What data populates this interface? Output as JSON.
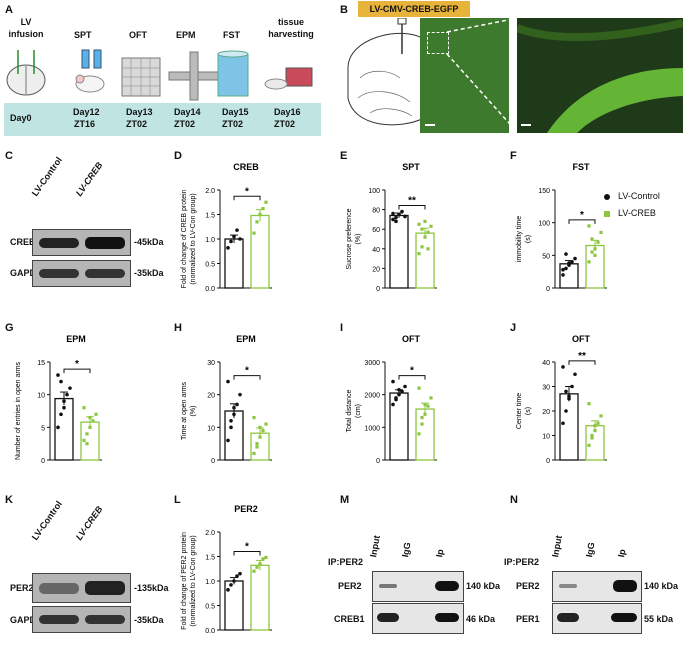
{
  "panels": {
    "A": {
      "label": "A",
      "steps": [
        "LV infusion",
        "SPT",
        "OFT",
        "EPM",
        "FST",
        "tissue harvesting"
      ],
      "days": [
        [
          "Day0",
          ""
        ],
        [
          "Day12",
          "ZT16"
        ],
        [
          "Day13",
          "ZT02"
        ],
        [
          "Day14",
          "ZT02"
        ],
        [
          "Day15",
          "ZT02"
        ],
        [
          "Day16",
          "ZT02"
        ]
      ]
    },
    "B": {
      "label": "B",
      "title": "LV-CMV-CREB-EGFP",
      "title_bg": "#e8b33a"
    },
    "C": {
      "label": "C",
      "lanes": [
        "LV-Control",
        "LV-CREB"
      ],
      "rows": [
        {
          "protein": "CREB",
          "size": "-45kDa"
        },
        {
          "protein": "GAPDH",
          "size": "-35kDa"
        }
      ]
    },
    "K": {
      "label": "K",
      "lanes": [
        "LV-Control",
        "LV-CREB"
      ],
      "rows": [
        {
          "protein": "PER2",
          "size": "-135kDa"
        },
        {
          "protein": "GAPDH",
          "size": "-35kDa"
        }
      ]
    },
    "M": {
      "label": "M",
      "ip": "IP:PER2",
      "lanes": [
        "Input",
        "IgG",
        "Ip"
      ],
      "rows": [
        {
          "protein": "PER2",
          "size": "140 kDa"
        },
        {
          "protein": "CREB1",
          "size": "46 kDa"
        }
      ]
    },
    "N": {
      "label": "N",
      "ip": "IP:PER2",
      "lanes": [
        "Input",
        "IgG",
        "Ip"
      ],
      "rows": [
        {
          "protein": "PER2",
          "size": "140 kDa"
        },
        {
          "protein": "PER1",
          "size": "55 kDa"
        }
      ]
    }
  },
  "legend": {
    "entries": [
      "LV-Control",
      "LV-CREB"
    ],
    "colors": [
      "#111111",
      "#8cc63f"
    ]
  },
  "chart_data": [
    {
      "id": "D",
      "type": "bar",
      "title": "CREB",
      "ylabel": "Fold of change of CREB protein (normalized to LV-Con group)",
      "categories": [
        "LV-Control",
        "LV-CREB"
      ],
      "values": [
        1.0,
        1.48
      ],
      "errors": [
        0.08,
        0.12
      ],
      "ylim": [
        0,
        2.0
      ],
      "yticks": [
        "0.0",
        "0.5",
        "1.0",
        "1.5",
        "2.0"
      ],
      "sig": "*",
      "points": [
        [
          0.82,
          0.95,
          1.05,
          1.18,
          1.0
        ],
        [
          1.12,
          1.35,
          1.5,
          1.62,
          1.75
        ]
      ]
    },
    {
      "id": "E",
      "type": "bar",
      "title": "SPT",
      "ylabel": "Sucrose preference (%)",
      "categories": [
        "LV-Control",
        "LV-CREB"
      ],
      "values": [
        74,
        56
      ],
      "errors": [
        2.5,
        5
      ],
      "ylim": [
        0,
        100
      ],
      "yticks": [
        "0",
        "20",
        "40",
        "60",
        "80",
        "100"
      ],
      "sig": "**",
      "points": [
        [
          70,
          72,
          75,
          78,
          73,
          76,
          68
        ],
        [
          35,
          42,
          52,
          57,
          63,
          65,
          60,
          68,
          40
        ]
      ]
    },
    {
      "id": "F",
      "type": "bar",
      "title": "FST",
      "ylabel": "immobility time (s)",
      "categories": [
        "LV-Control",
        "LV-CREB"
      ],
      "values": [
        37,
        65
      ],
      "errors": [
        5,
        8
      ],
      "ylim": [
        0,
        150
      ],
      "yticks": [
        "0",
        "50",
        "100",
        "150"
      ],
      "sig": "*",
      "points": [
        [
          20,
          30,
          35,
          40,
          45,
          28,
          52,
          38
        ],
        [
          40,
          55,
          60,
          70,
          85,
          95,
          75,
          50
        ]
      ]
    },
    {
      "id": "G",
      "type": "bar",
      "title": "EPM",
      "ylabel": "Number of entries in open arms",
      "categories": [
        "LV-Control",
        "LV-CREB"
      ],
      "values": [
        9.4,
        5.8
      ],
      "errors": [
        1.0,
        0.8
      ],
      "ylim": [
        0,
        15
      ],
      "yticks": [
        "0",
        "5",
        "10",
        "15"
      ],
      "sig": "*",
      "points": [
        [
          5,
          7,
          9,
          10,
          11,
          13,
          12,
          8
        ],
        [
          3,
          4,
          5,
          6,
          7,
          8,
          2.5,
          6.5
        ]
      ]
    },
    {
      "id": "H",
      "type": "bar",
      "title": "EPM",
      "ylabel": "Time at open arms (%)",
      "categories": [
        "LV-Control",
        "LV-CREB"
      ],
      "values": [
        15,
        8.2
      ],
      "errors": [
        2.2,
        1.6
      ],
      "ylim": [
        0,
        30
      ],
      "yticks": [
        "0",
        "10",
        "20",
        "30"
      ],
      "sig": "*",
      "points": [
        [
          6,
          10,
          14,
          17,
          20,
          24,
          12,
          16
        ],
        [
          2,
          5,
          7,
          9,
          11,
          13,
          4,
          10
        ]
      ]
    },
    {
      "id": "I",
      "type": "bar",
      "title": "OFT",
      "ylabel": "Total distance (cm)",
      "categories": [
        "LV-Control",
        "LV-CREB"
      ],
      "values": [
        2050,
        1560
      ],
      "errors": [
        100,
        180
      ],
      "ylim": [
        0,
        3000
      ],
      "yticks": [
        "0",
        "1000",
        "2000",
        "3000"
      ],
      "sig": "*",
      "points": [
        [
          1700,
          1850,
          2000,
          2100,
          2250,
          2400,
          1900,
          2150
        ],
        [
          800,
          1100,
          1400,
          1650,
          1900,
          2200,
          1300,
          1700
        ]
      ]
    },
    {
      "id": "J",
      "type": "bar",
      "title": "OFT",
      "ylabel": "Center time (s)",
      "categories": [
        "LV-Control",
        "LV-CREB"
      ],
      "values": [
        27,
        14
      ],
      "errors": [
        3,
        2
      ],
      "ylim": [
        0,
        40
      ],
      "yticks": [
        "0",
        "10",
        "20",
        "30",
        "40"
      ],
      "sig": "**",
      "points": [
        [
          15,
          20,
          25,
          30,
          35,
          38,
          28,
          26
        ],
        [
          6,
          9,
          12,
          15,
          18,
          23,
          10,
          14
        ]
      ]
    },
    {
      "id": "L",
      "type": "bar",
      "title": "PER2",
      "ylabel": "Fold of change of PER2 protein (normalized to LV-Con group)",
      "categories": [
        "LV-Control",
        "LV-CREB"
      ],
      "values": [
        1.0,
        1.32
      ],
      "errors": [
        0.07,
        0.1
      ],
      "ylim": [
        0,
        2.0
      ],
      "yticks": [
        "0.0",
        "0.5",
        "1.0",
        "1.5",
        "2.0"
      ],
      "sig": "*",
      "points": [
        [
          0.82,
          0.92,
          1.0,
          1.1,
          1.15
        ],
        [
          1.2,
          1.28,
          1.35,
          1.45,
          1.48
        ]
      ]
    }
  ]
}
